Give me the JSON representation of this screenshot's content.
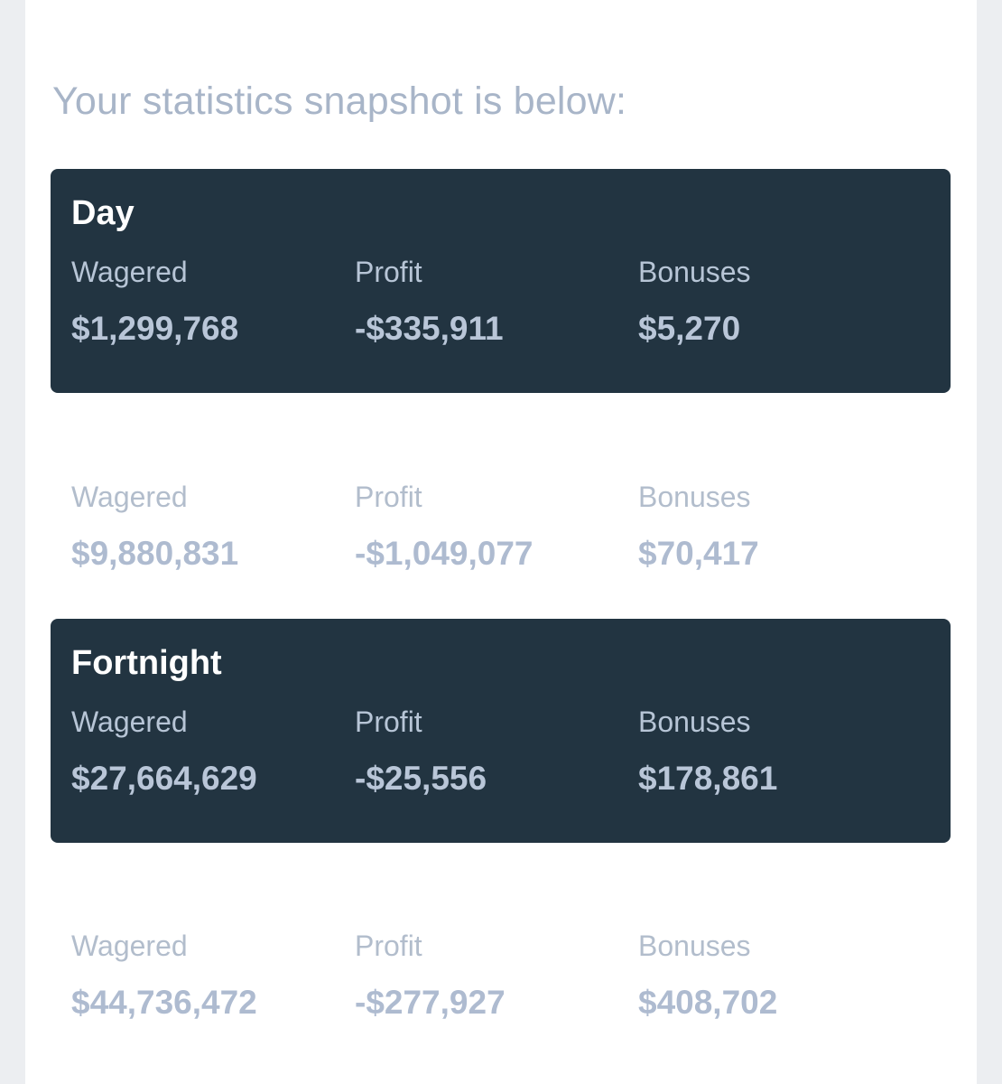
{
  "intro_text": "Your statistics snapshot is below:",
  "labels": {
    "wagered": "Wagered",
    "profit": "Profit",
    "bonuses": "Bonuses"
  },
  "periods": [
    {
      "title": "Day",
      "wagered": "$1,299,768",
      "profit": "-$335,911",
      "bonuses": "$5,270",
      "style": "dark"
    },
    {
      "title": "",
      "wagered": "$9,880,831",
      "profit": "-$1,049,077",
      "bonuses": "$70,417",
      "style": "light"
    },
    {
      "title": "Fortnight",
      "wagered": "$27,664,629",
      "profit": "-$25,556",
      "bonuses": "$178,861",
      "style": "dark"
    },
    {
      "title": "",
      "wagered": "$44,736,472",
      "profit": "-$277,927",
      "bonuses": "$408,702",
      "style": "light"
    }
  ],
  "colors": {
    "dark_panel": "#223441",
    "intro_text": "#a8b5c8",
    "background": "#eceef1",
    "card": "#ffffff"
  }
}
